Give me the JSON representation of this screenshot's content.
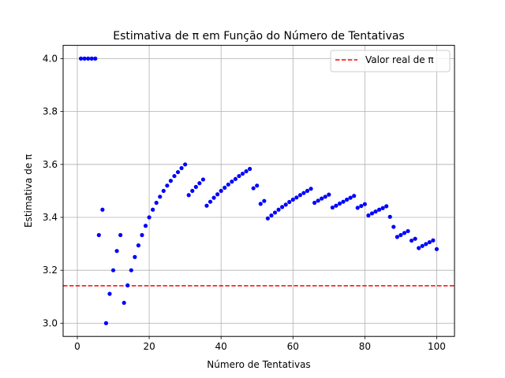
{
  "chart_data": {
    "type": "scatter",
    "title": "Estimativa de π em Função do Número de Tentativas",
    "xlabel": "Número de Tentativas",
    "ylabel": "Estimativa de π",
    "xlim": [
      -3.95,
      104.95
    ],
    "ylim": [
      2.95,
      4.05
    ],
    "x_ticks": [
      0,
      20,
      40,
      60,
      80,
      100
    ],
    "y_ticks": [
      3.0,
      3.2,
      3.4,
      3.6,
      3.8,
      4.0
    ],
    "y_tick_labels": [
      "3.0",
      "3.2",
      "3.4",
      "3.6",
      "3.8",
      "4.0"
    ],
    "grid": true,
    "legend_position": "top-right",
    "series": [
      {
        "type": "scatter",
        "color": "#0000ff",
        "x": [
          1,
          2,
          3,
          4,
          5,
          6,
          7,
          8,
          9,
          10,
          11,
          12,
          13,
          14,
          15,
          16,
          17,
          18,
          19,
          20,
          21,
          22,
          23,
          24,
          25,
          26,
          27,
          28,
          29,
          30,
          31,
          32,
          33,
          34,
          35,
          36,
          37,
          38,
          39,
          40,
          41,
          42,
          43,
          44,
          45,
          46,
          47,
          48,
          49,
          50,
          51,
          52,
          53,
          54,
          55,
          56,
          57,
          58,
          59,
          60,
          61,
          62,
          63,
          64,
          65,
          66,
          67,
          68,
          69,
          70,
          71,
          72,
          73,
          74,
          75,
          76,
          77,
          78,
          79,
          80,
          81,
          82,
          83,
          84,
          85,
          86,
          87,
          88,
          89,
          90,
          91,
          92,
          93,
          94,
          95,
          96,
          97,
          98,
          99,
          100
        ],
        "y": [
          4.0,
          4.0,
          4.0,
          4.0,
          4.0,
          3.333,
          3.429,
          3.0,
          3.111,
          3.2,
          3.273,
          3.333,
          3.077,
          3.143,
          3.2,
          3.25,
          3.294,
          3.333,
          3.368,
          3.4,
          3.429,
          3.455,
          3.478,
          3.5,
          3.52,
          3.538,
          3.556,
          3.571,
          3.586,
          3.6,
          3.484,
          3.5,
          3.515,
          3.529,
          3.543,
          3.444,
          3.459,
          3.474,
          3.487,
          3.5,
          3.512,
          3.524,
          3.535,
          3.545,
          3.556,
          3.565,
          3.574,
          3.583,
          3.51,
          3.52,
          3.451,
          3.462,
          3.396,
          3.407,
          3.418,
          3.429,
          3.439,
          3.448,
          3.458,
          3.467,
          3.475,
          3.484,
          3.492,
          3.5,
          3.508,
          3.455,
          3.463,
          3.471,
          3.478,
          3.486,
          3.437,
          3.444,
          3.452,
          3.459,
          3.467,
          3.474,
          3.481,
          3.436,
          3.443,
          3.45,
          3.407,
          3.415,
          3.422,
          3.429,
          3.435,
          3.442,
          3.402,
          3.364,
          3.326,
          3.333,
          3.341,
          3.348,
          3.312,
          3.319,
          3.284,
          3.292,
          3.299,
          3.306,
          3.313,
          3.28
        ]
      },
      {
        "type": "hline",
        "name": "Valor real de π",
        "value": 3.14159,
        "color": "#ff0000",
        "dash": "dashed"
      }
    ]
  }
}
